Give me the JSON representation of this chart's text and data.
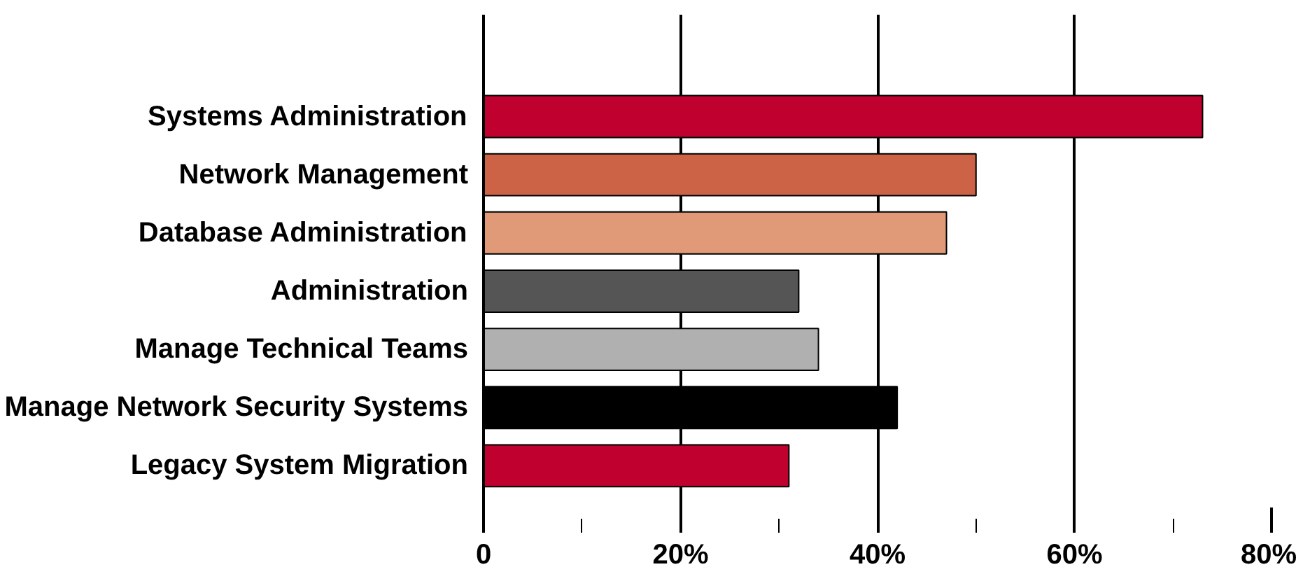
{
  "chart_data": {
    "type": "bar",
    "orientation": "horizontal",
    "categories": [
      "Systems Administration",
      "Network Management",
      "Database Administration",
      "Administration",
      "Manage Technical Teams",
      "Manage Network Security Systems",
      "Legacy System Migration"
    ],
    "values": [
      73,
      50,
      47,
      32,
      34,
      42,
      31
    ],
    "colors": [
      "#c0002f",
      "#cc6347",
      "#e09a78",
      "#555555",
      "#b0b0b0",
      "#000000",
      "#c0002f"
    ],
    "xlim": [
      0,
      80
    ],
    "xticks": [
      0,
      {
        "value": 20,
        "label": "20%"
      },
      {
        "value": 40,
        "label": "40%"
      },
      {
        "value": 60,
        "label": "60%"
      },
      {
        "value": 80,
        "label": "80%"
      }
    ],
    "grid": "x"
  }
}
